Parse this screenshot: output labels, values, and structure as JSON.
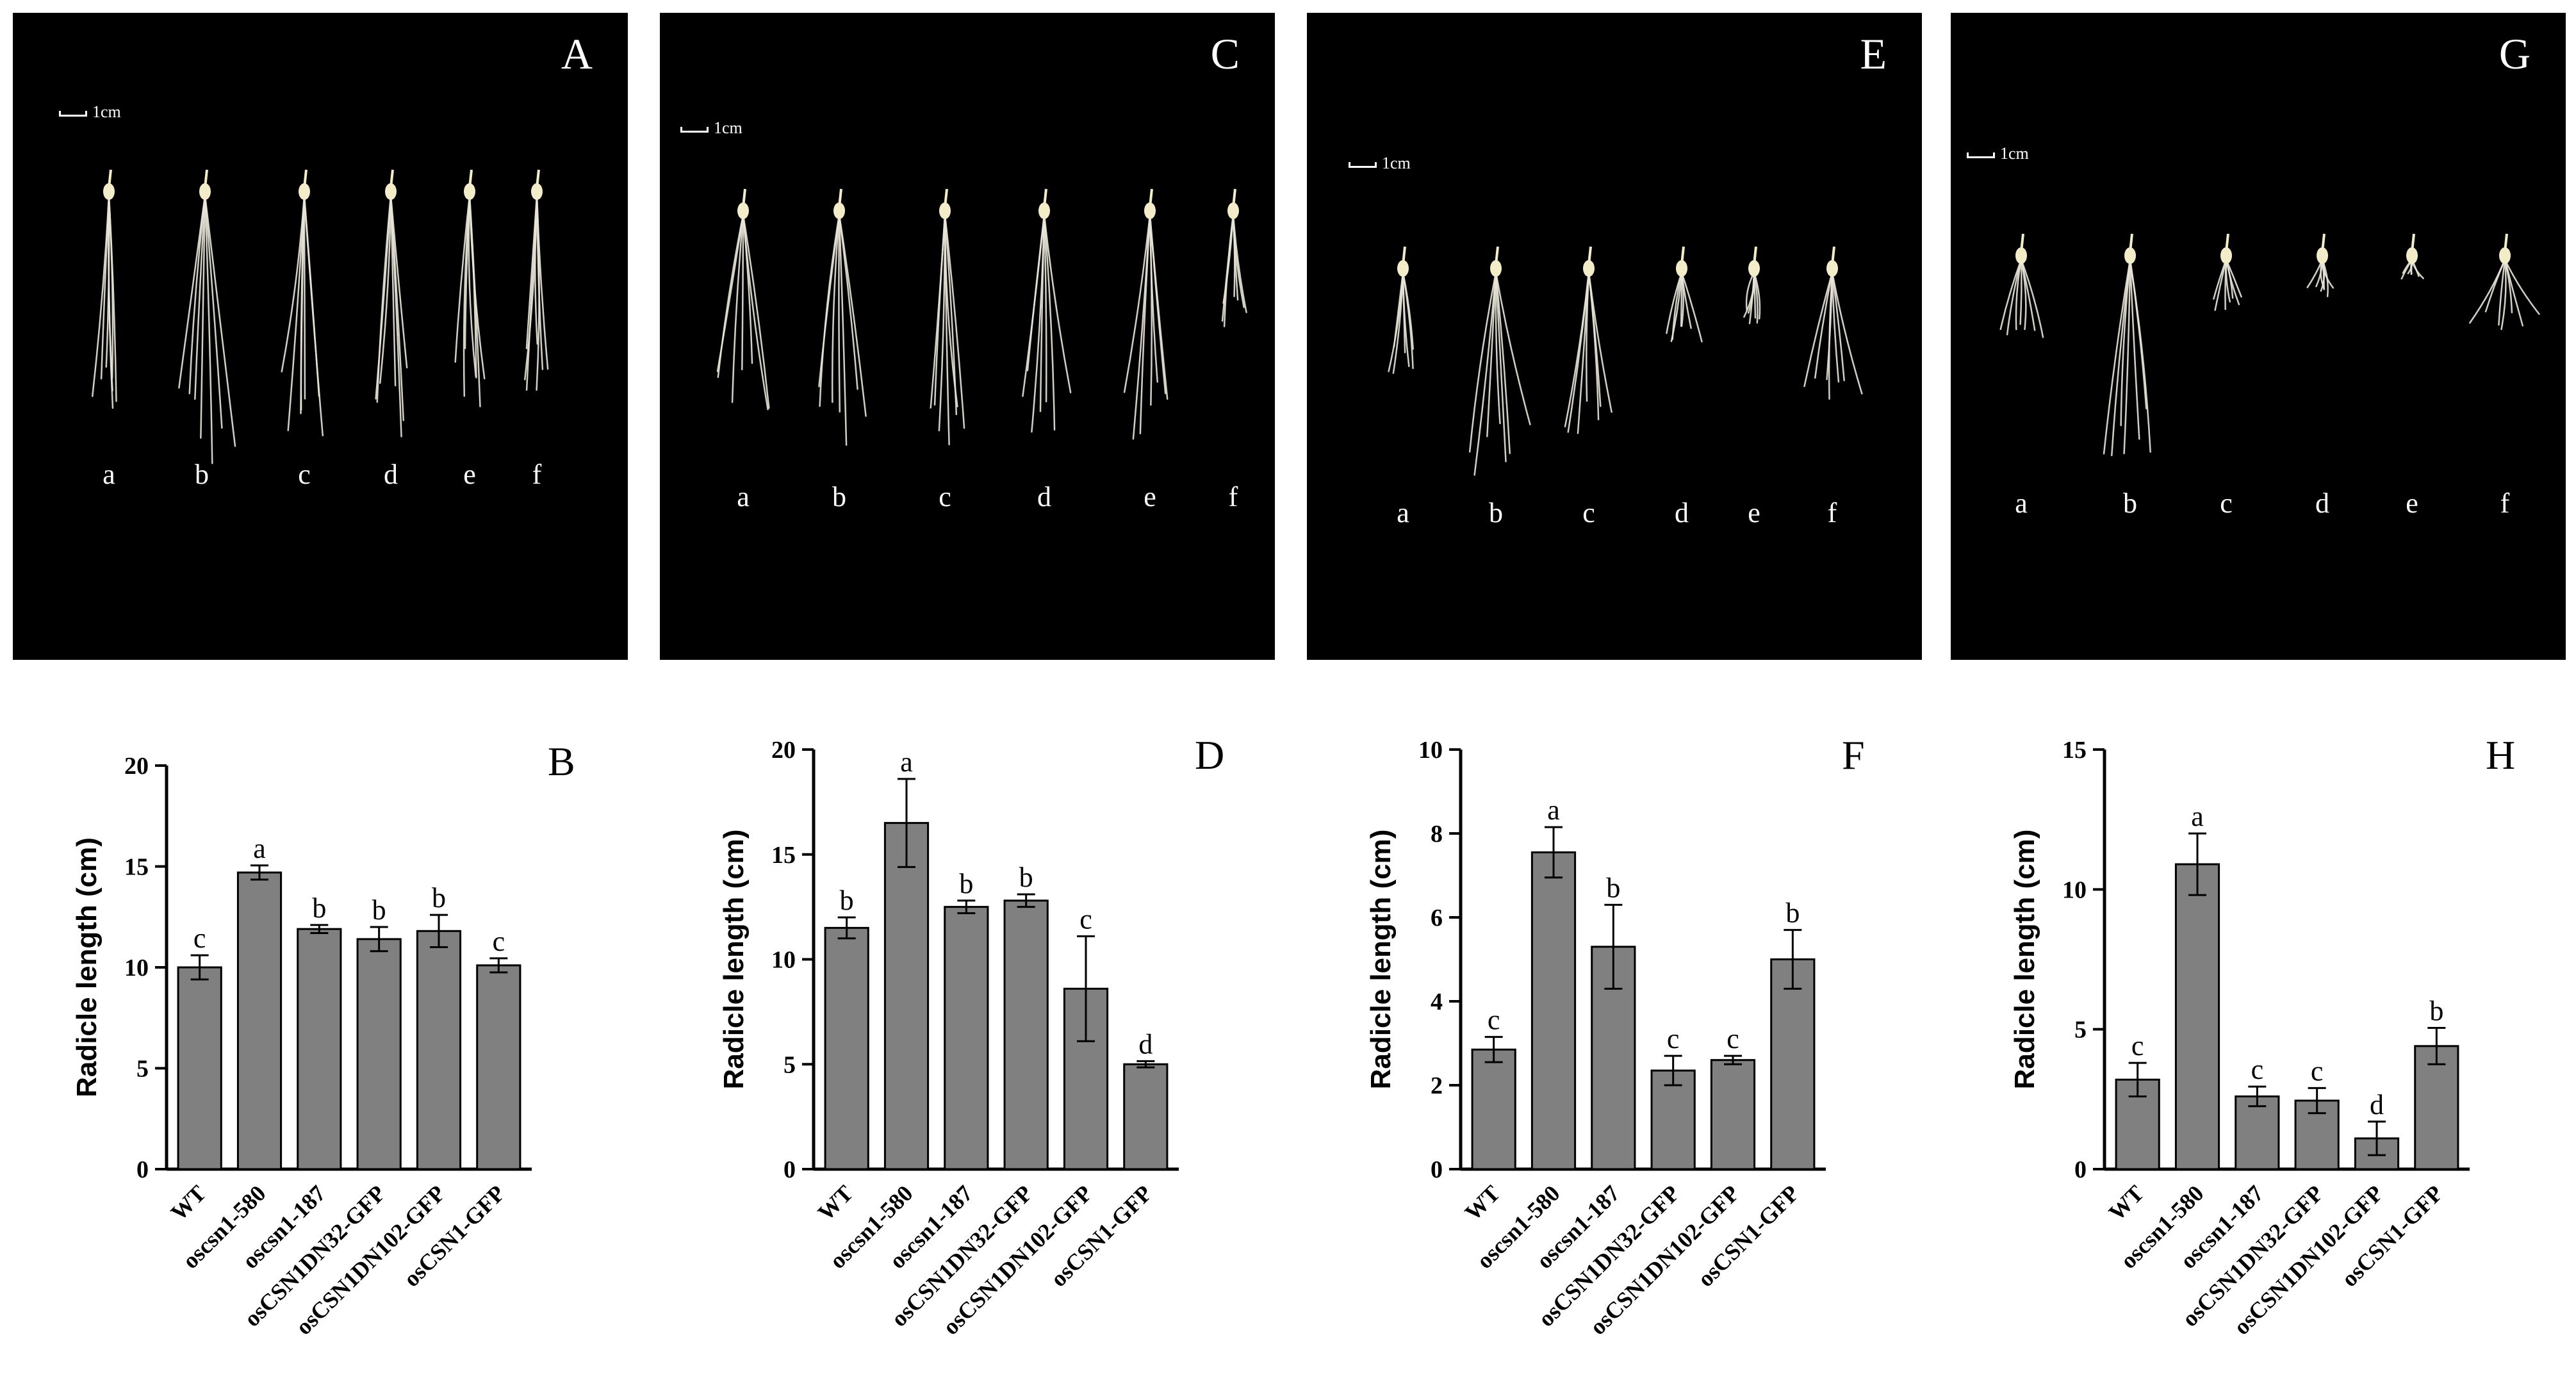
{
  "photo_panels": [
    {
      "letter": "A",
      "scale_label": "1cm",
      "sample_labels": [
        "a",
        "b",
        "c",
        "d",
        "e",
        "f"
      ]
    },
    {
      "letter": "C",
      "scale_label": "1cm",
      "sample_labels": [
        "a",
        "b",
        "c",
        "d",
        "e",
        "f"
      ]
    },
    {
      "letter": "E",
      "scale_label": "1cm",
      "sample_labels": [
        "a",
        "b",
        "c",
        "d",
        "e",
        "f"
      ]
    },
    {
      "letter": "G",
      "scale_label": "1cm",
      "sample_labels": [
        "a",
        "b",
        "c",
        "d",
        "e",
        "f"
      ]
    }
  ],
  "chart_data": [
    {
      "type": "bar",
      "panel": "B",
      "categories": [
        "WT",
        "oscsn1-580",
        "oscsn1-187",
        "osCSN1DN32-GFP",
        "osCSN1DN102-GFP",
        "osCSN1-GFP"
      ],
      "values": [
        10.0,
        14.7,
        11.9,
        11.4,
        11.8,
        10.1
      ],
      "errors": [
        0.6,
        0.35,
        0.2,
        0.6,
        0.8,
        0.35
      ],
      "letters": [
        "c",
        "a",
        "b",
        "b",
        "b",
        "c"
      ],
      "ylabel": "Radicle length (cm)",
      "ylim": [
        0,
        20
      ],
      "yticks": [
        0,
        5,
        10,
        15,
        20
      ],
      "bar_color": "#808080"
    },
    {
      "type": "bar",
      "panel": "D",
      "categories": [
        "WT",
        "oscsn1-580",
        "oscsn1-187",
        "osCSN1DN32-GFP",
        "osCSN1DN102-GFP",
        "osCSN1-GFP"
      ],
      "values": [
        11.5,
        16.5,
        12.5,
        12.8,
        8.6,
        5.0
      ],
      "errors": [
        0.5,
        2.1,
        0.3,
        0.3,
        2.5,
        0.15
      ],
      "letters": [
        "b",
        "a",
        "b",
        "b",
        "c",
        "d"
      ],
      "ylabel": "Radicle length (cm)",
      "ylim": [
        0,
        20
      ],
      "yticks": [
        0,
        5,
        10,
        15,
        20
      ],
      "bar_color": "#808080"
    },
    {
      "type": "bar",
      "panel": "F",
      "categories": [
        "WT",
        "oscsn1-580",
        "oscsn1-187",
        "osCSN1DN32-GFP",
        "osCSN1DN102-GFP",
        "osCSN1-GFP"
      ],
      "values": [
        2.85,
        7.55,
        5.3,
        2.35,
        2.6,
        5.0
      ],
      "errors": [
        0.3,
        0.6,
        1.0,
        0.35,
        0.1,
        0.7
      ],
      "letters": [
        "c",
        "a",
        "b",
        "c",
        "c",
        "b"
      ],
      "ylabel": "Radicle length (cm)",
      "ylim": [
        0,
        10
      ],
      "yticks": [
        0,
        2,
        4,
        6,
        8,
        10
      ],
      "bar_color": "#808080"
    },
    {
      "type": "bar",
      "panel": "H",
      "categories": [
        "WT",
        "oscsn1-580",
        "oscsn1-187",
        "osCSN1DN32-GFP",
        "osCSN1DN102-GFP",
        "osCSN1-GFP"
      ],
      "values": [
        3.2,
        10.9,
        2.6,
        2.45,
        1.1,
        4.4
      ],
      "errors": [
        0.6,
        1.1,
        0.35,
        0.45,
        0.6,
        0.65
      ],
      "letters": [
        "c",
        "a",
        "c",
        "c",
        "d",
        "b"
      ],
      "ylabel": "Radicle length (cm)",
      "ylim": [
        0,
        15
      ],
      "yticks": [
        0,
        5,
        10,
        15
      ],
      "bar_color": "#808080"
    }
  ]
}
